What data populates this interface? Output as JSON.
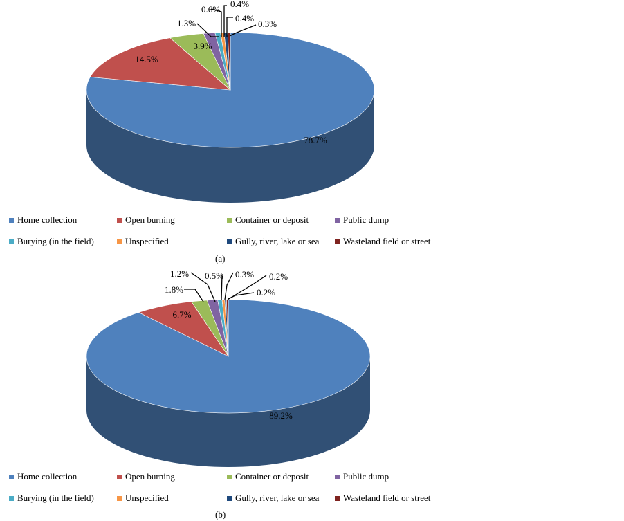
{
  "colors": {
    "Home collection": "#4F81BD",
    "Open burning": "#C0504D",
    "Container or deposit": "#9BBB59",
    "Public dump": "#8064A2",
    "Burying (in the field)": "#4BACC6",
    "Unspecified": "#F79646",
    "Gully, river, lake or sea": "#1F497D",
    "Wasteland field or street": "#7F2420"
  },
  "chart_data": [
    {
      "type": "pie",
      "caption": "(a)",
      "categories": [
        "Home collection",
        "Open burning",
        "Container or deposit",
        "Public dump",
        "Burying (in the field)",
        "Unspecified",
        "Gully, river, lake or sea",
        "Wasteland field or street"
      ],
      "values": [
        78.7,
        14.5,
        3.9,
        1.3,
        0.6,
        0.4,
        0.4,
        0.3
      ],
      "labels": [
        "78.7%",
        "14.5%",
        "3.9%",
        "1.3%",
        "0.6%",
        "0.4%",
        "0.4%",
        "0.3%"
      ],
      "legend": [
        "Home collection",
        "Open burning",
        "Container or deposit",
        "Public dump",
        "Burying (in the field)",
        "Unspecified",
        "Gully, river, lake or sea",
        "Wasteland field or street"
      ],
      "legend_position": "bottom"
    },
    {
      "type": "pie",
      "caption": "(b)",
      "categories": [
        "Home collection",
        "Open burning",
        "Container or deposit",
        "Public dump",
        "Burying (in the field)",
        "Unspecified",
        "Gully, river, lake or sea",
        "Wasteland field or street"
      ],
      "values": [
        89.2,
        6.7,
        1.8,
        1.2,
        0.5,
        0.3,
        0.2,
        0.2
      ],
      "labels": [
        "89.2%",
        "6.7%",
        "1.8%",
        "1.2%",
        "0.5%",
        "0.3%",
        "0.2%",
        "0.2%"
      ],
      "legend": [
        "Home collection",
        "Open burning",
        "Container or deposit",
        "Public dump",
        "Burying (in the field)",
        "Unspecified",
        "Gully, river, lake or sea",
        "Wasteland field or street"
      ],
      "legend_position": "bottom"
    }
  ]
}
